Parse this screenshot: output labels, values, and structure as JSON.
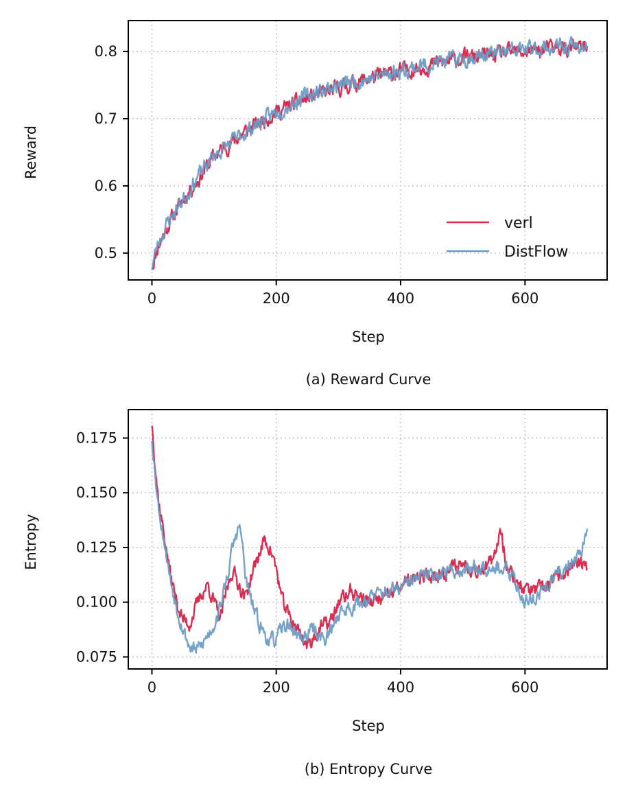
{
  "chart_data": [
    {
      "type": "line",
      "title": "",
      "caption": "(a) Reward Curve",
      "xlabel": "Step",
      "ylabel": "Reward",
      "xlim": [
        -38,
        732
      ],
      "ylim": [
        0.46,
        0.846
      ],
      "xticks": [
        0,
        200,
        400,
        600
      ],
      "xtick_labels": [
        "0",
        "200",
        "400",
        "600"
      ],
      "yticks": [
        0.5,
        0.6,
        0.7,
        0.8
      ],
      "ytick_labels": [
        "0.5",
        "0.6",
        "0.7",
        "0.8"
      ],
      "grid": true,
      "legend": "lower-right",
      "x_range": [
        0,
        700
      ],
      "series": [
        {
          "name": "verl",
          "color": "#dc2d50",
          "anchors_x": [
            0,
            10,
            25,
            50,
            75,
            100,
            150,
            200,
            250,
            300,
            350,
            400,
            450,
            500,
            550,
            600,
            650,
            700
          ],
          "anchors_y": [
            0.48,
            0.51,
            0.54,
            0.58,
            0.61,
            0.645,
            0.68,
            0.71,
            0.73,
            0.745,
            0.76,
            0.77,
            0.78,
            0.79,
            0.795,
            0.8,
            0.805,
            0.805
          ],
          "noise": 0.012,
          "seed": 11
        },
        {
          "name": "DistFlow",
          "color": "#6a9ac4",
          "anchors_x": [
            0,
            10,
            25,
            50,
            75,
            100,
            150,
            200,
            250,
            300,
            350,
            400,
            450,
            500,
            550,
            600,
            650,
            700
          ],
          "anchors_y": [
            0.48,
            0.515,
            0.545,
            0.58,
            0.615,
            0.645,
            0.68,
            0.71,
            0.735,
            0.75,
            0.76,
            0.772,
            0.782,
            0.79,
            0.797,
            0.803,
            0.806,
            0.808
          ],
          "noise": 0.012,
          "seed": 23
        }
      ]
    },
    {
      "type": "line",
      "title": "",
      "caption": "(b) Entropy Curve",
      "xlabel": "Step",
      "ylabel": "Entropy",
      "xlim": [
        -38,
        732
      ],
      "ylim": [
        0.0695,
        0.188
      ],
      "xticks": [
        0,
        200,
        400,
        600
      ],
      "xtick_labels": [
        "0",
        "200",
        "400",
        "600"
      ],
      "yticks": [
        0.075,
        0.1,
        0.125,
        0.15,
        0.175
      ],
      "ytick_labels": [
        "0.075",
        "0.100",
        "0.125",
        "0.150",
        "0.175"
      ],
      "grid": true,
      "x_range": [
        0,
        700
      ],
      "series": [
        {
          "name": "verl",
          "color": "#dc2d50",
          "anchors_x": [
            0,
            5,
            10,
            20,
            30,
            40,
            50,
            60,
            70,
            80,
            90,
            100,
            110,
            120,
            130,
            140,
            150,
            160,
            170,
            180,
            190,
            200,
            210,
            220,
            230,
            240,
            250,
            260,
            270,
            280,
            290,
            300,
            320,
            350,
            380,
            400,
            420,
            450,
            480,
            500,
            520,
            550,
            560,
            570,
            580,
            600,
            620,
            650,
            680,
            700
          ],
          "anchors_y": [
            0.182,
            0.165,
            0.148,
            0.13,
            0.112,
            0.1,
            0.092,
            0.09,
            0.097,
            0.104,
            0.108,
            0.1,
            0.092,
            0.105,
            0.115,
            0.108,
            0.102,
            0.112,
            0.12,
            0.128,
            0.125,
            0.115,
            0.1,
            0.094,
            0.09,
            0.085,
            0.08,
            0.084,
            0.088,
            0.09,
            0.092,
            0.1,
            0.105,
            0.1,
            0.102,
            0.108,
            0.11,
            0.112,
            0.115,
            0.118,
            0.115,
            0.118,
            0.135,
            0.118,
            0.112,
            0.106,
            0.105,
            0.11,
            0.118,
            0.115
          ],
          "noise": 0.0035,
          "seed": 37
        },
        {
          "name": "DistFlow",
          "color": "#6a9ac4",
          "anchors_x": [
            0,
            5,
            10,
            20,
            30,
            40,
            50,
            60,
            70,
            80,
            90,
            100,
            110,
            120,
            130,
            140,
            145,
            150,
            160,
            170,
            180,
            190,
            200,
            210,
            220,
            230,
            240,
            250,
            260,
            270,
            280,
            290,
            300,
            320,
            350,
            380,
            400,
            420,
            450,
            480,
            500,
            520,
            550,
            580,
            600,
            620,
            650,
            680,
            700
          ],
          "anchors_y": [
            0.175,
            0.16,
            0.145,
            0.128,
            0.11,
            0.098,
            0.088,
            0.08,
            0.078,
            0.08,
            0.085,
            0.09,
            0.098,
            0.11,
            0.125,
            0.135,
            0.128,
            0.112,
            0.1,
            0.092,
            0.086,
            0.082,
            0.083,
            0.088,
            0.09,
            0.086,
            0.084,
            0.085,
            0.088,
            0.085,
            0.083,
            0.088,
            0.095,
            0.098,
            0.102,
            0.105,
            0.106,
            0.11,
            0.113,
            0.114,
            0.115,
            0.116,
            0.117,
            0.112,
            0.1,
            0.103,
            0.112,
            0.12,
            0.13
          ],
          "noise": 0.0035,
          "seed": 53
        }
      ]
    }
  ]
}
